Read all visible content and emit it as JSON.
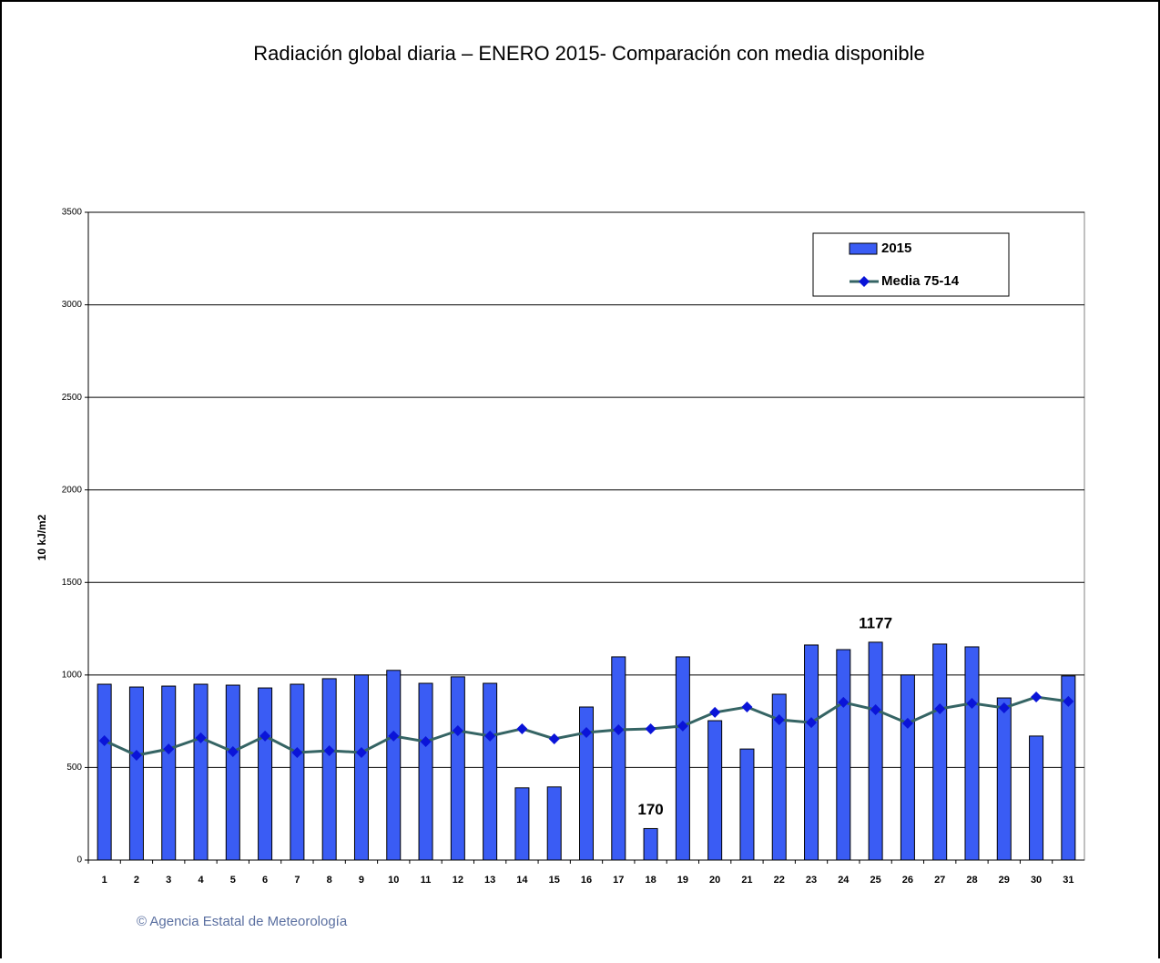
{
  "chart_data": {
    "type": "bar",
    "title": "Radiación global diaria –  ENERO 2015- Comparación con media disponible",
    "y_label": "10 kJ/m2",
    "footer": "© Agencia Estatal de Meteorología",
    "categories": [
      "1",
      "2",
      "3",
      "4",
      "5",
      "6",
      "7",
      "8",
      "9",
      "10",
      "11",
      "12",
      "13",
      "14",
      "15",
      "16",
      "17",
      "18",
      "19",
      "20",
      "21",
      "22",
      "23",
      "24",
      "25",
      "26",
      "27",
      "28",
      "29",
      "30",
      "31"
    ],
    "series": [
      {
        "name": "2015",
        "type": "bar",
        "color": "#3a5cf4",
        "values": [
          950,
          935,
          940,
          950,
          945,
          930,
          950,
          980,
          1000,
          1025,
          955,
          990,
          955,
          390,
          395,
          827,
          1098,
          170,
          1098,
          753,
          600,
          896,
          1162,
          1137,
          1177,
          1000,
          1167,
          1152,
          876,
          670,
          995
        ],
        "value_labels": [
          null,
          null,
          null,
          null,
          null,
          null,
          null,
          null,
          null,
          null,
          null,
          null,
          null,
          null,
          null,
          null,
          null,
          "170",
          null,
          null,
          null,
          null,
          null,
          null,
          "1177",
          null,
          null,
          null,
          null,
          null,
          null
        ]
      },
      {
        "name": "Media 75-14",
        "type": "line",
        "color": "#356464",
        "marker_color": "#0a14d8",
        "values": [
          645,
          566,
          600,
          660,
          586,
          670,
          581,
          591,
          581,
          670,
          640,
          699,
          670,
          709,
          655,
          689,
          704,
          709,
          724,
          798,
          827,
          758,
          743,
          852,
          812,
          739,
          817,
          847,
          822,
          881,
          857
        ]
      }
    ],
    "ylim": [
      0,
      3500
    ],
    "yticks": [
      0,
      500,
      1000,
      1500,
      2000,
      2500,
      3000,
      3500
    ],
    "grid": true,
    "legend": "upper right"
  }
}
